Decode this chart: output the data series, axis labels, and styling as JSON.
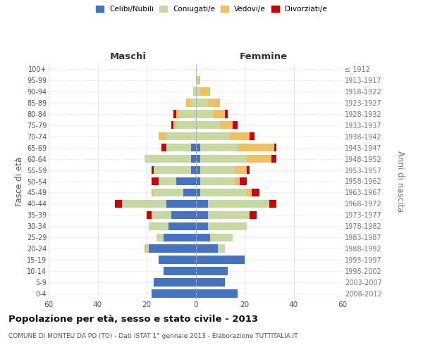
{
  "age_groups": [
    "0-4",
    "5-9",
    "10-14",
    "15-19",
    "20-24",
    "25-29",
    "30-34",
    "35-39",
    "40-44",
    "45-49",
    "50-54",
    "55-59",
    "60-64",
    "65-69",
    "70-74",
    "75-79",
    "80-84",
    "85-89",
    "90-94",
    "95-99",
    "100+"
  ],
  "birth_years": [
    "2008-2012",
    "2003-2007",
    "1998-2002",
    "1993-1997",
    "1988-1992",
    "1983-1987",
    "1978-1982",
    "1973-1977",
    "1968-1972",
    "1963-1967",
    "1958-1962",
    "1953-1957",
    "1948-1952",
    "1943-1947",
    "1938-1942",
    "1933-1937",
    "1928-1932",
    "1923-1927",
    "1918-1922",
    "1913-1917",
    "≤ 1912"
  ],
  "male": {
    "celibi": [
      18,
      17,
      13,
      15,
      19,
      13,
      11,
      10,
      12,
      5,
      8,
      2,
      2,
      2,
      0,
      0,
      0,
      0,
      0,
      0,
      0
    ],
    "coniugati": [
      0,
      0,
      0,
      0,
      1,
      3,
      8,
      8,
      18,
      12,
      7,
      15,
      19,
      10,
      12,
      8,
      7,
      2,
      1,
      0,
      0
    ],
    "vedovi": [
      0,
      0,
      0,
      0,
      1,
      0,
      0,
      0,
      0,
      1,
      0,
      0,
      0,
      0,
      3,
      1,
      1,
      2,
      0,
      0,
      0
    ],
    "divorziati": [
      0,
      0,
      0,
      0,
      0,
      0,
      0,
      2,
      3,
      0,
      3,
      1,
      0,
      2,
      0,
      1,
      1,
      0,
      0,
      0,
      0
    ]
  },
  "female": {
    "nubili": [
      17,
      12,
      13,
      20,
      9,
      6,
      5,
      5,
      5,
      2,
      2,
      2,
      2,
      2,
      0,
      0,
      0,
      0,
      0,
      0,
      0
    ],
    "coniugate": [
      0,
      0,
      0,
      0,
      3,
      9,
      16,
      17,
      25,
      19,
      14,
      14,
      19,
      15,
      14,
      10,
      7,
      5,
      2,
      1,
      0
    ],
    "vedove": [
      0,
      0,
      0,
      0,
      0,
      0,
      0,
      0,
      0,
      2,
      2,
      5,
      10,
      15,
      8,
      5,
      5,
      5,
      4,
      1,
      0
    ],
    "divorziate": [
      0,
      0,
      0,
      0,
      0,
      0,
      0,
      3,
      3,
      3,
      3,
      1,
      2,
      1,
      2,
      2,
      1,
      0,
      0,
      0,
      0
    ]
  },
  "colors": {
    "celibi": "#4472c4",
    "coniugati": "#c5d9a0",
    "vedovi": "#f0c060",
    "divorziati": "#cc0000"
  },
  "xlim": 60,
  "title": "Popolazione per età, sesso e stato civile - 2013",
  "subtitle": "COMUNE DI MONTEU DA PO (TO) - Dati ISTAT 1° gennaio 2013 - Elaborazione TUTTITALIA.IT",
  "ylabel_left": "Fasce di età",
  "ylabel_right": "Anni di nascita",
  "xlabel_male": "Maschi",
  "xlabel_female": "Femmine",
  "bg_color": "#ffffff",
  "grid_color": "#c8c8c8"
}
